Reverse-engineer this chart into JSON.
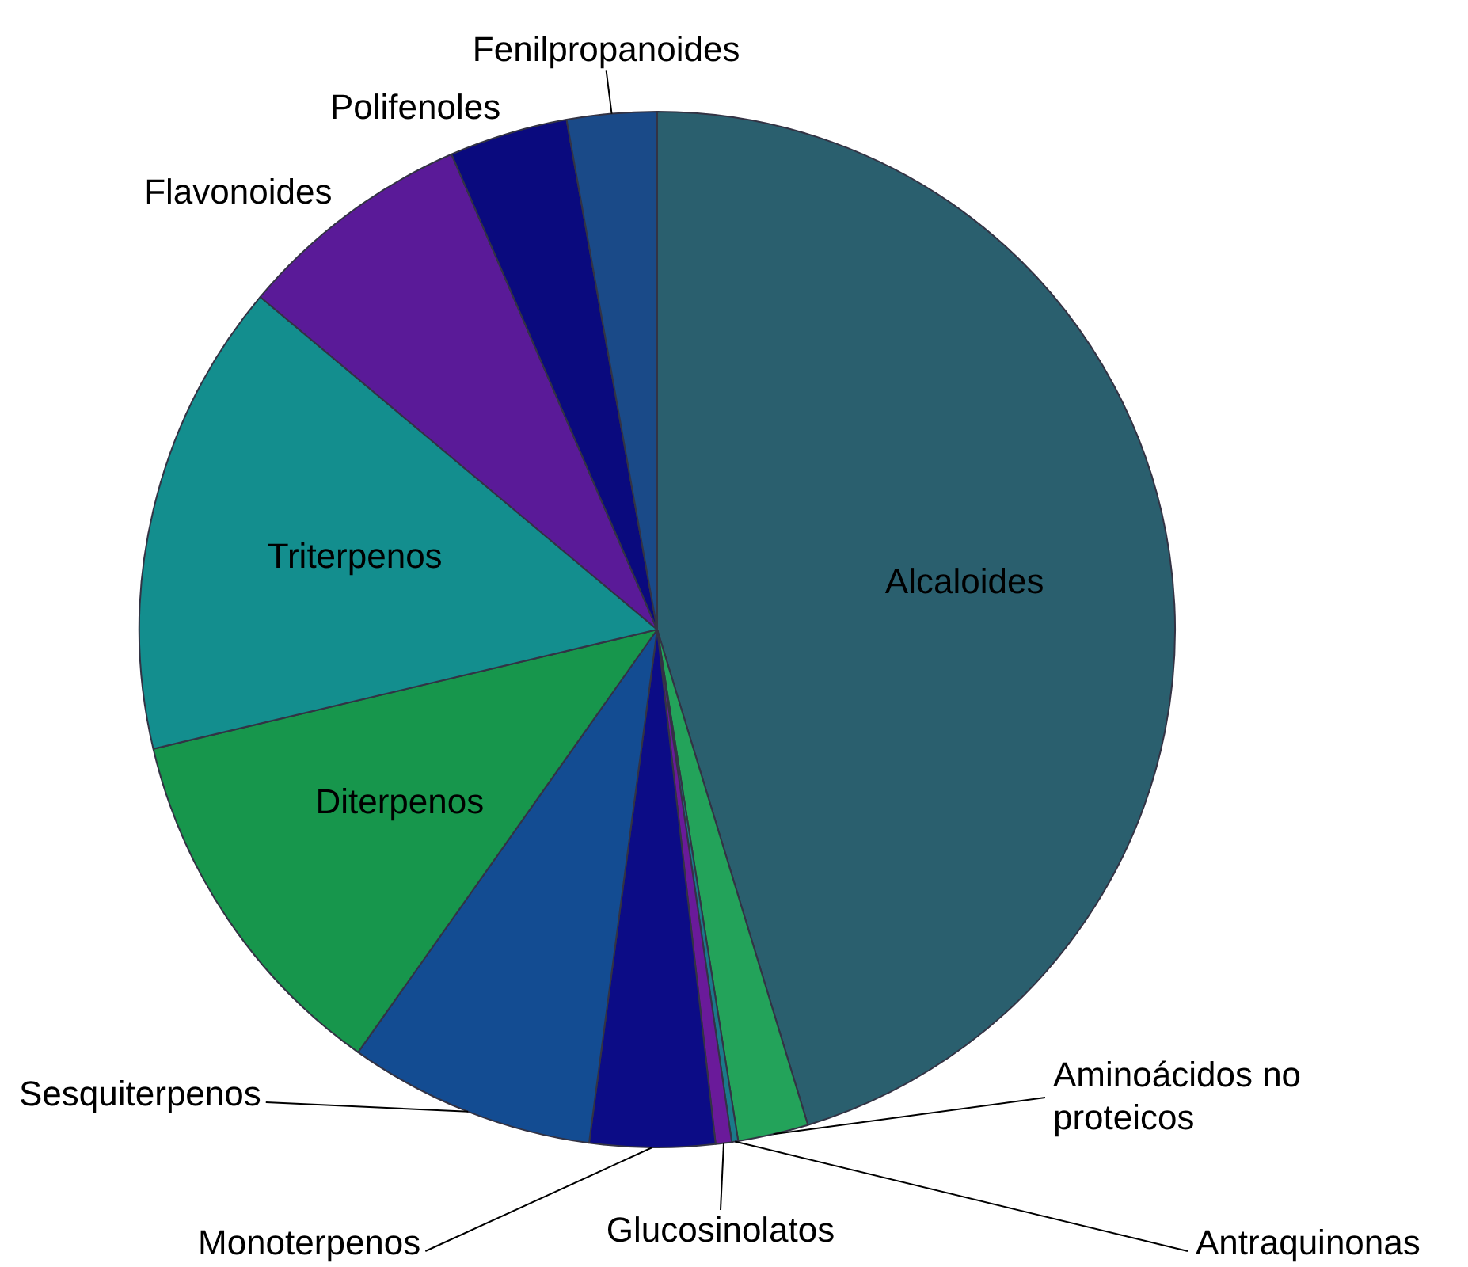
{
  "chart_data": {
    "type": "pie",
    "categories": [
      "Alcaloides",
      "Aminoácidos no proteicos",
      "Antraquinonas",
      "Glucosinolatos",
      "Monoterpenos",
      "Sesquiterpenos",
      "Diterpenos",
      "Triterpenos",
      "Flavonoides",
      "Polifenoles",
      "Fenilpropanoides"
    ],
    "values": [
      45.3,
      2.2,
      0.2,
      0.5,
      3.9,
      7.7,
      11.5,
      14.8,
      7.4,
      3.7,
      2.8
    ],
    "colors": [
      "#2a5f6e",
      "#23a35a",
      "#1a7a8a",
      "#6a1a9a",
      "#0c0c86",
      "#134c92",
      "#17964c",
      "#138e8e",
      "#5a1a98",
      "#0a0a7e",
      "#1a4a88"
    ],
    "legend": false
  }
}
